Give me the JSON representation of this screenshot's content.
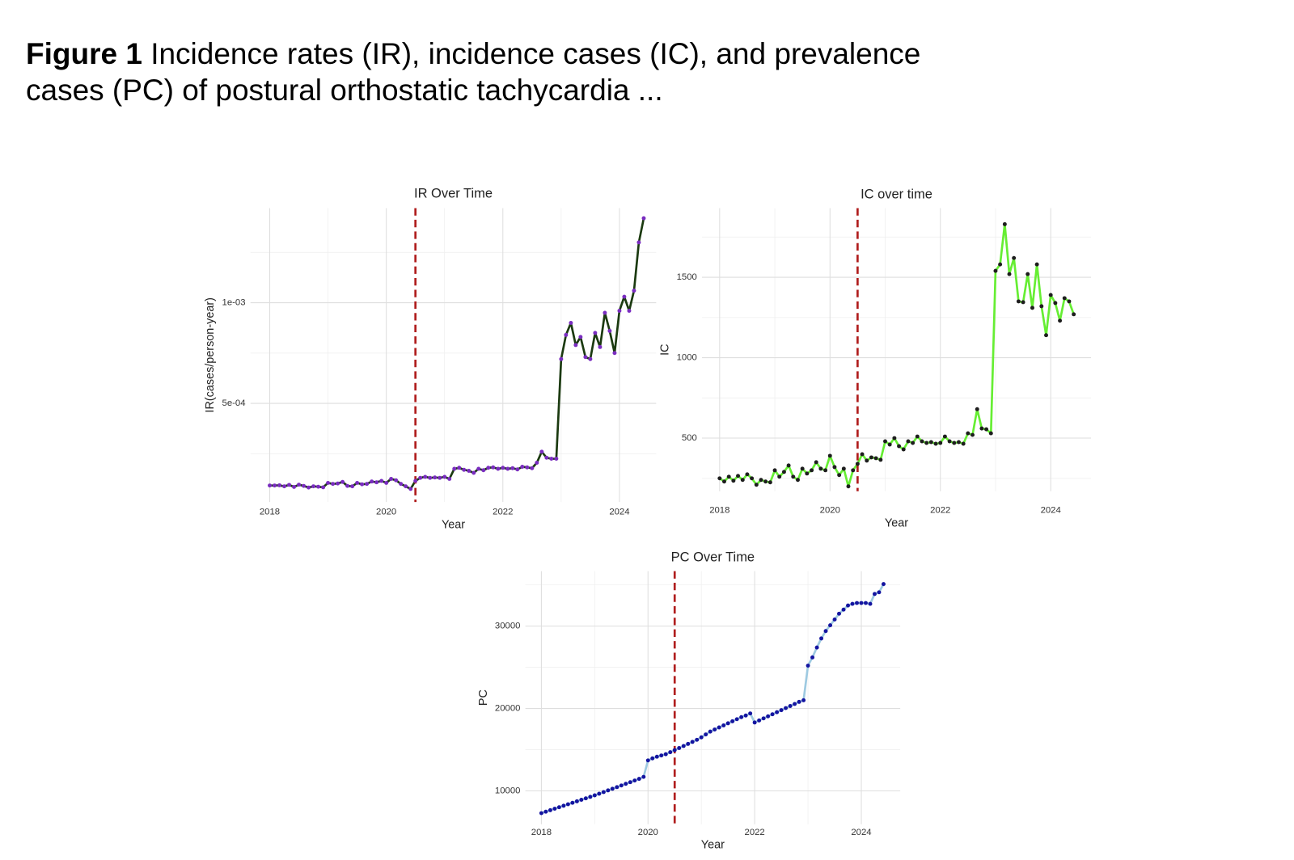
{
  "caption_label": "Figure 1",
  "caption_text": "Incidence rates (IR), incidence cases (IC), and prevalence cases (PC) of postural orthostatic tachycardia ...",
  "chart_data": [
    {
      "type": "line",
      "title": "IR Over Time",
      "x_label": "Year",
      "y_label": "IR(cases/person-year)",
      "x": [
        2018,
        2018.083,
        2018.167,
        2018.25,
        2018.333,
        2018.417,
        2018.5,
        2018.583,
        2018.667,
        2018.75,
        2018.833,
        2018.917,
        2019,
        2019.083,
        2019.167,
        2019.25,
        2019.333,
        2019.417,
        2019.5,
        2019.583,
        2019.667,
        2019.75,
        2019.833,
        2019.917,
        2020,
        2020.083,
        2020.167,
        2020.25,
        2020.333,
        2020.417,
        2020.5,
        2020.583,
        2020.667,
        2020.75,
        2020.833,
        2020.917,
        2021,
        2021.083,
        2021.167,
        2021.25,
        2021.333,
        2021.417,
        2021.5,
        2021.583,
        2021.667,
        2021.75,
        2021.833,
        2021.917,
        2022,
        2022.083,
        2022.167,
        2022.25,
        2022.333,
        2022.417,
        2022.5,
        2022.583,
        2022.667,
        2022.75,
        2022.833,
        2022.917,
        2023,
        2023.083,
        2023.167,
        2023.25,
        2023.333,
        2023.417,
        2023.5,
        2023.583,
        2023.667,
        2023.75,
        2023.833,
        2023.917,
        2024,
        2024.083,
        2024.167,
        2024.25,
        2024.333,
        2024.417
      ],
      "values": [
        9.2e-05,
        9.2e-05,
        9.3e-05,
        8.8e-05,
        9.5e-05,
        8.5e-05,
        9.6e-05,
        9e-05,
        8.2e-05,
        8.8e-05,
        8.6e-05,
        8.3e-05,
        0.000105,
        0.0001,
        0.000102,
        0.00011,
        9e-05,
        8.8e-05,
        0.000105,
        9.8e-05,
        0.0001,
        0.000112,
        0.000108,
        0.000115,
        0.000105,
        0.000125,
        0.000118,
        0.0001,
        8.8e-05,
        7.5e-05,
        0.000115,
        0.00013,
        0.000135,
        0.00013,
        0.000132,
        0.00013,
        0.000135,
        0.000125,
        0.000175,
        0.00018,
        0.00017,
        0.000165,
        0.000155,
        0.000175,
        0.000168,
        0.00018,
        0.000182,
        0.000175,
        0.00018,
        0.000175,
        0.000178,
        0.000172,
        0.000185,
        0.000182,
        0.000178,
        0.000205,
        0.00026,
        0.00023,
        0.000225,
        0.000225,
        0.00072,
        0.00084,
        0.0009,
        0.00079,
        0.00083,
        0.00073,
        0.00072,
        0.00085,
        0.00078,
        0.00095,
        0.00086,
        0.00075,
        0.00096,
        0.00103,
        0.00096,
        0.00106,
        0.0013,
        0.00142
      ],
      "line_color": "#1b3a10",
      "point_color": "#7a2dc0",
      "xlim": [
        2017.67,
        2024.63
      ],
      "xticks": [
        2018,
        2020,
        2022,
        2024
      ],
      "ylim": [
        1e-05,
        0.00147
      ],
      "yticks": [
        {
          "value": 0.0005,
          "label": "5e-04"
        },
        {
          "value": 0.001,
          "label": "1e-03"
        }
      ],
      "vline": 2020.5,
      "vline_color": "#b01e1e",
      "grid": true
    },
    {
      "type": "line",
      "title": "IC over time",
      "x_label": "Year",
      "y_label": "IC",
      "x": [
        2018,
        2018.083,
        2018.167,
        2018.25,
        2018.333,
        2018.417,
        2018.5,
        2018.583,
        2018.667,
        2018.75,
        2018.833,
        2018.917,
        2019,
        2019.083,
        2019.167,
        2019.25,
        2019.333,
        2019.417,
        2019.5,
        2019.583,
        2019.667,
        2019.75,
        2019.833,
        2019.917,
        2020,
        2020.083,
        2020.167,
        2020.25,
        2020.333,
        2020.417,
        2020.5,
        2020.583,
        2020.667,
        2020.75,
        2020.833,
        2020.917,
        2021,
        2021.083,
        2021.167,
        2021.25,
        2021.333,
        2021.417,
        2021.5,
        2021.583,
        2021.667,
        2021.75,
        2021.833,
        2021.917,
        2022,
        2022.083,
        2022.167,
        2022.25,
        2022.333,
        2022.417,
        2022.5,
        2022.583,
        2022.667,
        2022.75,
        2022.833,
        2022.917,
        2023,
        2023.083,
        2023.167,
        2023.25,
        2023.333,
        2023.417,
        2023.5,
        2023.583,
        2023.667,
        2023.75,
        2023.833,
        2023.917,
        2024,
        2024.083,
        2024.167,
        2024.25,
        2024.333,
        2024.417
      ],
      "values": [
        250,
        230,
        260,
        235,
        265,
        240,
        275,
        250,
        210,
        240,
        230,
        225,
        300,
        260,
        290,
        330,
        260,
        240,
        310,
        280,
        300,
        350,
        310,
        300,
        390,
        320,
        270,
        310,
        200,
        300,
        340,
        400,
        360,
        380,
        375,
        365,
        480,
        460,
        500,
        450,
        430,
        480,
        470,
        510,
        480,
        470,
        475,
        465,
        470,
        510,
        480,
        470,
        475,
        465,
        530,
        520,
        680,
        560,
        555,
        530,
        1540,
        1580,
        1830,
        1520,
        1620,
        1350,
        1345,
        1520,
        1310,
        1580,
        1320,
        1140,
        1390,
        1340,
        1230,
        1370,
        1350,
        1270
      ],
      "line_color": "#66ee33",
      "point_color": "#1e1e1e",
      "xlim": [
        2017.68,
        2024.73
      ],
      "xticks": [
        2018,
        2020,
        2022,
        2024
      ],
      "ylim": [
        170,
        1930
      ],
      "yticks": [
        500,
        1000,
        1500
      ],
      "vline": 2020.5,
      "vline_color": "#b01e1e",
      "grid": true
    },
    {
      "type": "line",
      "title": "PC Over Time",
      "x_label": "Year",
      "y_label": "PC",
      "x": [
        2018,
        2018.083,
        2018.167,
        2018.25,
        2018.333,
        2018.417,
        2018.5,
        2018.583,
        2018.667,
        2018.75,
        2018.833,
        2018.917,
        2019,
        2019.083,
        2019.167,
        2019.25,
        2019.333,
        2019.417,
        2019.5,
        2019.583,
        2019.667,
        2019.75,
        2019.833,
        2019.917,
        2020,
        2020.083,
        2020.167,
        2020.25,
        2020.333,
        2020.417,
        2020.5,
        2020.583,
        2020.667,
        2020.75,
        2020.833,
        2020.917,
        2021,
        2021.083,
        2021.167,
        2021.25,
        2021.333,
        2021.417,
        2021.5,
        2021.583,
        2021.667,
        2021.75,
        2021.833,
        2021.917,
        2022,
        2022.083,
        2022.167,
        2022.25,
        2022.333,
        2022.417,
        2022.5,
        2022.583,
        2022.667,
        2022.75,
        2022.833,
        2022.917,
        2023,
        2023.083,
        2023.167,
        2023.25,
        2023.333,
        2023.417,
        2023.5,
        2023.583,
        2023.667,
        2023.75,
        2023.833,
        2023.917,
        2024,
        2024.083,
        2024.167,
        2024.25,
        2024.333,
        2024.417
      ],
      "values": [
        7300,
        7480,
        7660,
        7840,
        8020,
        8200,
        8380,
        8560,
        8740,
        8920,
        9100,
        9280,
        9460,
        9660,
        9860,
        10060,
        10260,
        10460,
        10660,
        10860,
        11060,
        11260,
        11460,
        11700,
        13700,
        13950,
        14150,
        14300,
        14450,
        14700,
        14950,
        15200,
        15450,
        15700,
        15950,
        16200,
        16500,
        16850,
        17200,
        17450,
        17700,
        17950,
        18200,
        18450,
        18700,
        18950,
        19150,
        19400,
        18300,
        18550,
        18800,
        19050,
        19300,
        19550,
        19800,
        20050,
        20300,
        20550,
        20800,
        21000,
        25200,
        26200,
        27400,
        28500,
        29400,
        30100,
        30800,
        31500,
        32000,
        32500,
        32700,
        32800,
        32800,
        32800,
        32700,
        33900,
        34100,
        35100
      ],
      "line_color": "#9ecae1",
      "point_color": "#1414a0",
      "xlim": [
        2017.7,
        2024.73
      ],
      "xticks": [
        2018,
        2020,
        2022,
        2024
      ],
      "ylim": [
        5960,
        36670
      ],
      "yticks": [
        10000,
        20000,
        30000
      ],
      "vline": 2020.5,
      "vline_color": "#b01e1e",
      "grid": true
    }
  ]
}
